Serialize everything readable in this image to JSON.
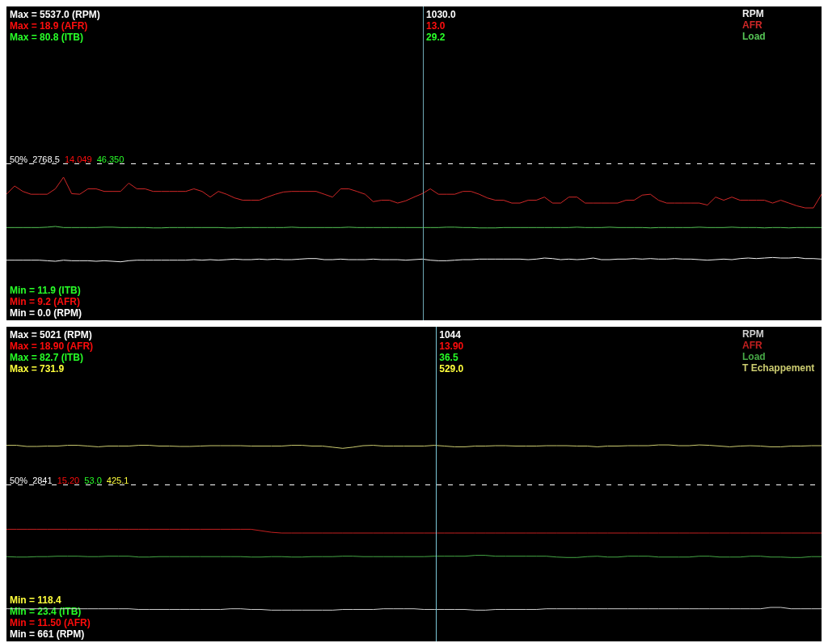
{
  "chart_data": [
    {
      "type": "line",
      "categories": [
        null,
        null,
        null,
        null,
        null,
        null,
        null,
        null,
        null,
        null,
        null,
        null,
        null,
        null,
        null,
        null,
        null,
        null,
        null,
        null,
        null,
        null,
        null,
        null,
        null,
        null,
        null,
        null,
        null,
        null,
        null,
        null,
        null,
        null,
        null,
        null,
        null,
        null,
        null,
        null,
        null,
        null,
        null,
        null,
        null,
        null,
        null,
        null,
        null,
        null,
        null,
        null,
        null,
        null,
        null,
        null,
        null,
        null,
        null,
        null,
        null,
        null,
        null,
        null,
        null,
        null,
        null,
        null,
        null,
        null,
        null,
        null,
        null,
        null,
        null,
        null,
        null,
        null,
        null,
        null,
        null,
        null,
        null,
        null,
        null,
        null,
        null,
        null,
        null,
        null,
        null,
        null,
        null,
        null,
        null,
        null,
        null,
        null,
        null,
        null,
        null
      ],
      "series": [
        {
          "name": "RPM",
          "color": "#f0f0f0",
          "axis": "y",
          "values": [
            980,
            980,
            980,
            980,
            980,
            970,
            960,
            980,
            970,
            970,
            970,
            960,
            970,
            960,
            950,
            970,
            980,
            980,
            980,
            980,
            980,
            980,
            980,
            990,
            980,
            990,
            980,
            990,
            1000,
            990,
            990,
            1000,
            990,
            1000,
            990,
            990,
            1000,
            1010,
            1010,
            990,
            990,
            1000,
            990,
            990,
            990,
            1000,
            990,
            990,
            990,
            980,
            990,
            1000,
            980,
            970,
            970,
            980,
            990,
            990,
            1000,
            1000,
            1000,
            1000,
            1000,
            1000,
            990,
            1000,
            1020,
            1010,
            990,
            1000,
            990,
            1000,
            1020,
            990,
            990,
            1000,
            1000,
            1010,
            1000,
            1010,
            1000,
            1000,
            1010,
            1000,
            1000,
            990,
            980,
            990,
            1000,
            990,
            1010,
            1020,
            1010,
            1020,
            1030,
            1020,
            1020,
            1030,
            1010,
            1010,
            1000
          ]
        },
        {
          "name": "AFR",
          "color": "#d02828",
          "axis": "y2",
          "values": [
            12.98,
            13.27,
            13.08,
            12.98,
            12.98,
            12.98,
            13.17,
            13.58,
            13.0,
            12.98,
            13.17,
            13.17,
            13.08,
            13.08,
            13.08,
            13.37,
            13.17,
            13.17,
            13.08,
            13.08,
            13.08,
            13.08,
            13.08,
            13.17,
            13.08,
            12.88,
            13.08,
            12.98,
            12.85,
            12.77,
            12.77,
            12.77,
            12.88,
            12.98,
            13.06,
            13.08,
            13.08,
            13.08,
            13.08,
            12.98,
            12.88,
            13.17,
            13.17,
            13.08,
            12.98,
            12.72,
            12.77,
            12.77,
            12.67,
            12.75,
            12.88,
            13.0,
            13.17,
            12.98,
            12.98,
            12.98,
            13.08,
            13.08,
            12.98,
            12.85,
            12.77,
            12.77,
            12.67,
            12.67,
            12.77,
            12.77,
            12.88,
            12.67,
            12.67,
            12.88,
            12.88,
            12.67,
            12.67,
            12.67,
            12.67,
            12.67,
            12.77,
            12.77,
            12.95,
            12.98,
            12.77,
            12.67,
            12.67,
            12.67,
            12.67,
            12.67,
            12.6,
            12.88,
            12.77,
            12.88,
            12.77,
            12.77,
            12.77,
            12.77,
            12.67,
            12.77,
            12.67,
            12.57,
            12.5,
            12.5,
            12.98
          ]
        },
        {
          "name": "Load",
          "color": "#55c455",
          "axis": "y3",
          "values": [
            29.0,
            29.0,
            29.0,
            29.0,
            29.0,
            29.1,
            29.3,
            29.0,
            29.0,
            29.0,
            29.0,
            29.0,
            29.1,
            29.1,
            29.0,
            29.0,
            29.0,
            29.0,
            28.9,
            28.9,
            29.0,
            29.0,
            29.0,
            29.0,
            29.0,
            29.0,
            29.0,
            28.9,
            28.9,
            29.0,
            29.0,
            29.0,
            29.0,
            29.0,
            29.0,
            29.1,
            29.0,
            29.0,
            29.0,
            29.0,
            29.0,
            29.0,
            29.1,
            29.0,
            29.0,
            29.0,
            29.0,
            29.0,
            29.0,
            29.0,
            29.0,
            29.0,
            29.0,
            29.0,
            29.1,
            29.1,
            29.0,
            29.0,
            28.9,
            28.9,
            28.9,
            29.0,
            29.0,
            29.0,
            29.0,
            29.0,
            29.0,
            29.0,
            29.0,
            29.0,
            29.1,
            29.0,
            29.0,
            29.0,
            29.1,
            29.0,
            29.0,
            29.0,
            29.0,
            28.9,
            29.0,
            29.0,
            29.0,
            29.0,
            29.0,
            29.1,
            29.0,
            29.0,
            29.0,
            29.1,
            29.0,
            29.0,
            29.0,
            28.9,
            29.0,
            29.0,
            28.9,
            29.0,
            29.0,
            29.0,
            29.0
          ]
        }
      ],
      "ylim": [
        -135,
        5687
      ],
      "yticks": [
        {
          "value": 0,
          "label": "Min = 0.0 (RPM)"
        },
        {
          "value": 5537,
          "label": "Max = 5537.0 (RPM)"
        }
      ],
      "y2lim": [
        8.55,
        19.58
      ],
      "y2ticks": [
        {
          "value": 9.2,
          "label": "Min = 9.2 (AFR)"
        },
        {
          "value": 18.9,
          "label": "Max = 18.9 (AFR)"
        }
      ],
      "y3lim": [
        3.76,
        89.16
      ],
      "y3ticks": [
        {
          "value": 11.9,
          "label": "Min = 11.9 (ITB)"
        },
        {
          "value": 80.8,
          "label": "Max = 80.8 (ITB)"
        }
      ],
      "ref_lines": [
        {
          "axis": "y",
          "value": 2768.5,
          "label": "50% 2768.5 14.049 46.350",
          "color": "#ffffff",
          "line_style": "dashed"
        }
      ],
      "annotations": [
        "1030.0",
        "13.0",
        "29.2"
      ],
      "legend": "top right",
      "tick_labels": "y",
      "marker": "none"
    },
    {
      "type": "line",
      "categories": [
        null,
        null,
        null,
        null,
        null,
        null,
        null,
        null,
        null,
        null,
        null,
        null,
        null,
        null,
        null,
        null,
        null,
        null,
        null,
        null,
        null,
        null,
        null,
        null,
        null,
        null,
        null,
        null,
        null,
        null,
        null,
        null,
        null,
        null,
        null,
        null,
        null,
        null,
        null,
        null,
        null,
        null,
        null,
        null,
        null,
        null,
        null,
        null,
        null,
        null,
        null,
        null,
        null,
        null,
        null,
        null,
        null,
        null,
        null,
        null,
        null,
        null,
        null,
        null,
        null,
        null,
        null,
        null,
        null,
        null,
        null,
        null,
        null,
        null,
        null,
        null,
        null,
        null,
        null,
        null,
        null
      ],
      "series": [
        {
          "name": "RPM",
          "color": "#d0d0d0",
          "axis": "y",
          "values": [
            1030,
            1030,
            1030,
            1030,
            1030,
            1030,
            1030,
            1030,
            1030,
            1030,
            1030,
            1030,
            1030,
            1020,
            1020,
            1020,
            1020,
            1020,
            1020,
            1020,
            1020,
            1020,
            1030,
            1030,
            1020,
            1020,
            1010,
            1010,
            1010,
            1010,
            1010,
            1010,
            1010,
            1020,
            1020,
            1020,
            1020,
            1030,
            1030,
            1030,
            1030,
            1020,
            1020,
            1020,
            1020,
            1020,
            1010,
            1010,
            1020,
            1020,
            1020,
            1020,
            1020,
            1030,
            1030,
            1030,
            1030,
            1030,
            1030,
            1030,
            1030,
            1030,
            1030,
            1030,
            1030,
            1030,
            1030,
            1030,
            1030,
            1030,
            1030,
            1030,
            1030,
            1030,
            1030,
            1050,
            1050,
            1030,
            1030,
            1030,
            1030
          ]
        },
        {
          "name": "AFR",
          "color": "#c42020",
          "axis": "y2",
          "values": [
            14.0,
            14.0,
            14.0,
            14.0,
            14.0,
            14.0,
            14.0,
            14.0,
            14.0,
            14.0,
            14.0,
            14.0,
            14.0,
            14.0,
            14.0,
            14.0,
            14.0,
            14.0,
            14.0,
            14.0,
            14.0,
            14.0,
            14.0,
            14.0,
            14.0,
            13.96,
            13.92,
            13.9,
            13.9,
            13.9,
            13.9,
            13.9,
            13.9,
            13.9,
            13.9,
            13.9,
            13.9,
            13.9,
            13.9,
            13.9,
            13.9,
            13.9,
            13.9,
            13.9,
            13.9,
            13.9,
            13.9,
            13.9,
            13.9,
            13.9,
            13.9,
            13.9,
            13.9,
            13.9,
            13.9,
            13.9,
            13.9,
            13.9,
            13.9,
            13.9,
            13.9,
            13.9,
            13.9,
            13.9,
            13.9,
            13.9,
            13.9,
            13.9,
            13.9,
            13.9,
            13.9,
            13.9,
            13.9,
            13.9,
            13.9,
            13.9,
            13.9,
            13.9,
            13.9,
            13.9,
            13.9
          ]
        },
        {
          "name": "Load",
          "color": "#46a846",
          "axis": "y3",
          "values": [
            36.2,
            36.1,
            36.1,
            36.2,
            36.2,
            36.3,
            36.3,
            36.3,
            36.2,
            36.2,
            36.3,
            36.3,
            36.3,
            36.1,
            36.1,
            36.2,
            36.2,
            36.2,
            36.2,
            36.2,
            36.2,
            36.2,
            36.2,
            36.2,
            36.1,
            36.1,
            36.2,
            36.2,
            36.1,
            36.1,
            36.2,
            36.2,
            36.2,
            36.3,
            36.3,
            36.2,
            36.2,
            36.2,
            36.2,
            36.2,
            36.2,
            36.2,
            36.3,
            36.3,
            36.3,
            36.3,
            36.5,
            36.5,
            36.3,
            36.3,
            36.3,
            36.3,
            36.3,
            36.3,
            36.1,
            36.0,
            36.0,
            36.2,
            36.3,
            36.1,
            36.1,
            36.3,
            36.3,
            36.3,
            36.1,
            36.1,
            36.1,
            36.1,
            36.3,
            36.3,
            36.1,
            36.1,
            36.1,
            36.3,
            36.3,
            36.1,
            36.1,
            36.0,
            36.0,
            36.2,
            36.2
          ]
        }
      ],
      "ylim": [
        555,
        5139
      ],
      "yticks": [
        {
          "value": 661,
          "label": "Min = 661 (RPM)"
        },
        {
          "value": 5021,
          "label": "Max = 5021 (RPM)"
        }
      ],
      "y2lim": [
        11.0,
        19.42
      ],
      "y2ticks": [
        {
          "value": 11.5,
          "label": "Min = 11.50 (AFR)"
        },
        {
          "value": 18.9,
          "label": "Max = 18.90 (AFR)"
        }
      ],
      "y3lim": [
        16.41,
        89.88
      ],
      "y3ticks": [
        {
          "value": 23.4,
          "label": "Min = 23.4 (ITB)"
        },
        {
          "value": 82.7,
          "label": "Max = 82.7 (ITB)"
        }
      ],
      "ref_lines": [
        {
          "axis": "y",
          "value": 2841,
          "label": "50% 2841 15.20 53.0 425.1",
          "color": "#ffffff",
          "line_style": "dashed"
        }
      ],
      "annotations": [
        "1044",
        "13.90",
        "36.5"
      ],
      "legend": "top right",
      "tick_labels": "y",
      "marker": "none"
    },
    {
      "type": "line",
      "categories": [
        null,
        null,
        null,
        null,
        null,
        null,
        null,
        null,
        null,
        null,
        null,
        null,
        null,
        null,
        null,
        null,
        null,
        null,
        null,
        null,
        null,
        null,
        null,
        null,
        null,
        null,
        null,
        null,
        null,
        null,
        null,
        null,
        null,
        null,
        null,
        null,
        null,
        null,
        null,
        null,
        null,
        null,
        null,
        null,
        null,
        null,
        null,
        null,
        null,
        null,
        null,
        null,
        null,
        null,
        null,
        null,
        null,
        null,
        null,
        null,
        null,
        null,
        null,
        null,
        null,
        null,
        null,
        null,
        null,
        null,
        null,
        null,
        null,
        null,
        null,
        null,
        null,
        null,
        null,
        null,
        null
      ],
      "series": [
        {
          "name": "T Echappement",
          "color": "#cccc70",
          "axis": "y",
          "values": [
            529,
            529,
            526,
            526,
            527,
            527,
            529,
            529,
            527,
            525,
            527,
            527,
            527,
            529,
            529,
            527,
            527,
            526,
            526,
            527,
            528,
            528,
            528,
            528,
            527,
            527,
            527,
            527,
            529,
            529,
            527,
            527,
            524,
            521,
            524,
            528,
            529,
            527,
            527,
            527,
            527,
            527,
            529,
            527,
            525,
            525,
            527,
            527,
            528,
            528,
            527,
            527,
            527,
            528,
            528,
            528,
            527,
            527,
            525,
            527,
            527,
            528,
            528,
            528,
            530,
            530,
            528,
            528,
            530,
            529,
            527,
            525,
            527,
            528,
            527,
            525,
            525,
            527,
            527,
            528,
            528
          ]
        }
      ],
      "ylim": [
        9.0,
        843.4
      ],
      "yticks": [
        {
          "value": 118.4,
          "label": "Min = 118.4"
        },
        {
          "value": 731.9,
          "label": "Max = 731.9"
        }
      ],
      "annotations": [
        "529.0"
      ],
      "legend": "top right",
      "tick_labels": "y",
      "marker": "none"
    }
  ]
}
